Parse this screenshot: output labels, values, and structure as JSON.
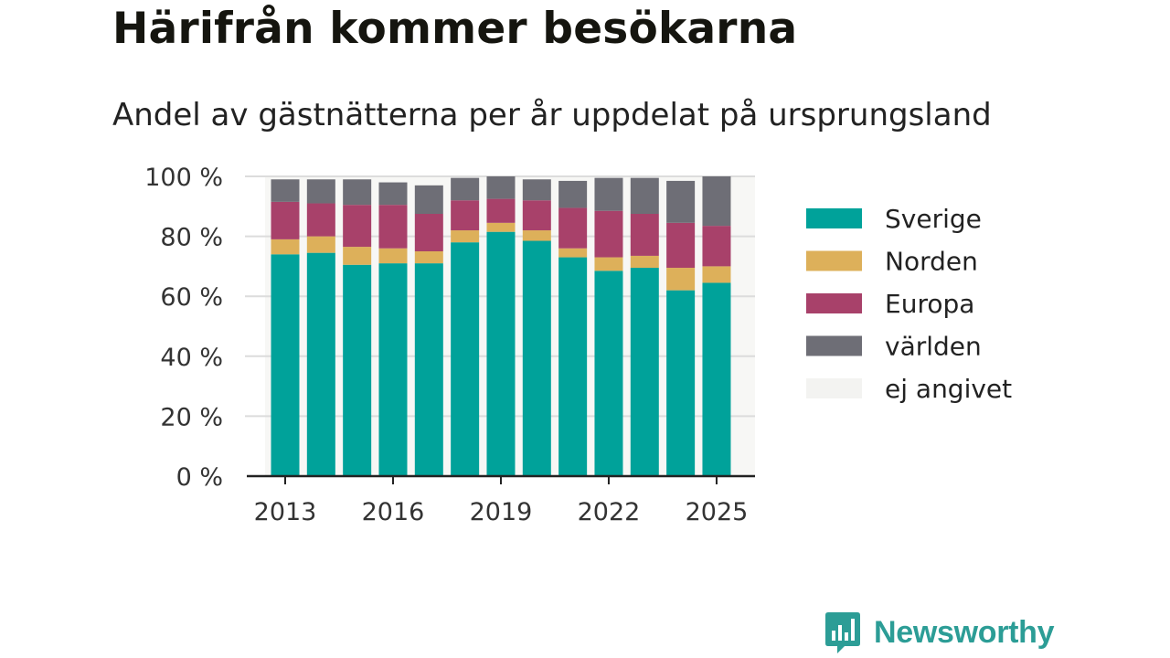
{
  "header": {
    "title": "Härifrån kommer besökarna",
    "subtitle": "Andel av gästnätterna per år uppdelat på ursprungsland"
  },
  "brand": {
    "name": "Newsworthy",
    "color": "#2c9d96",
    "icon": "newsworthy-logo-icon"
  },
  "chart_data": {
    "type": "bar",
    "stacked": true,
    "categories": [
      "2013",
      "2014",
      "2015",
      "2016",
      "2017",
      "2018",
      "2019",
      "2020",
      "2021",
      "2022",
      "2023",
      "2024",
      "2025"
    ],
    "x_tick_labels": [
      "2013",
      "2016",
      "2019",
      "2022",
      "2025"
    ],
    "y_tick_labels": [
      "0 %",
      "20 %",
      "40 %",
      "60 %",
      "80 %",
      "100 %"
    ],
    "ylim": [
      0,
      100
    ],
    "grid": true,
    "legend_position": "right",
    "series": [
      {
        "name": "Sverige",
        "color": "#00a29a",
        "values": [
          74,
          74.5,
          70.5,
          71,
          71,
          78,
          81.5,
          78.5,
          73,
          68.5,
          69.5,
          62,
          64.5
        ]
      },
      {
        "name": "Norden",
        "color": "#ddb05a",
        "values": [
          5,
          5.5,
          6,
          5,
          4,
          4,
          3,
          3.5,
          3,
          4.5,
          4,
          7.5,
          5.5
        ]
      },
      {
        "name": "Europa",
        "color": "#a8416a",
        "values": [
          12.5,
          11,
          14,
          14.5,
          12.5,
          10,
          8,
          10,
          13.5,
          15.5,
          14,
          15,
          13.5
        ]
      },
      {
        "name": "världen",
        "color": "#6e6e76",
        "values": [
          7.5,
          8,
          8.5,
          7.5,
          9.5,
          7.5,
          7.5,
          7,
          9,
          11,
          12,
          14,
          16.5
        ]
      },
      {
        "name": "ej angivet",
        "color": "#f3f3f1",
        "values": [
          0,
          0,
          0,
          0,
          0,
          0,
          0,
          0,
          0,
          0,
          0,
          0,
          0
        ]
      }
    ]
  }
}
